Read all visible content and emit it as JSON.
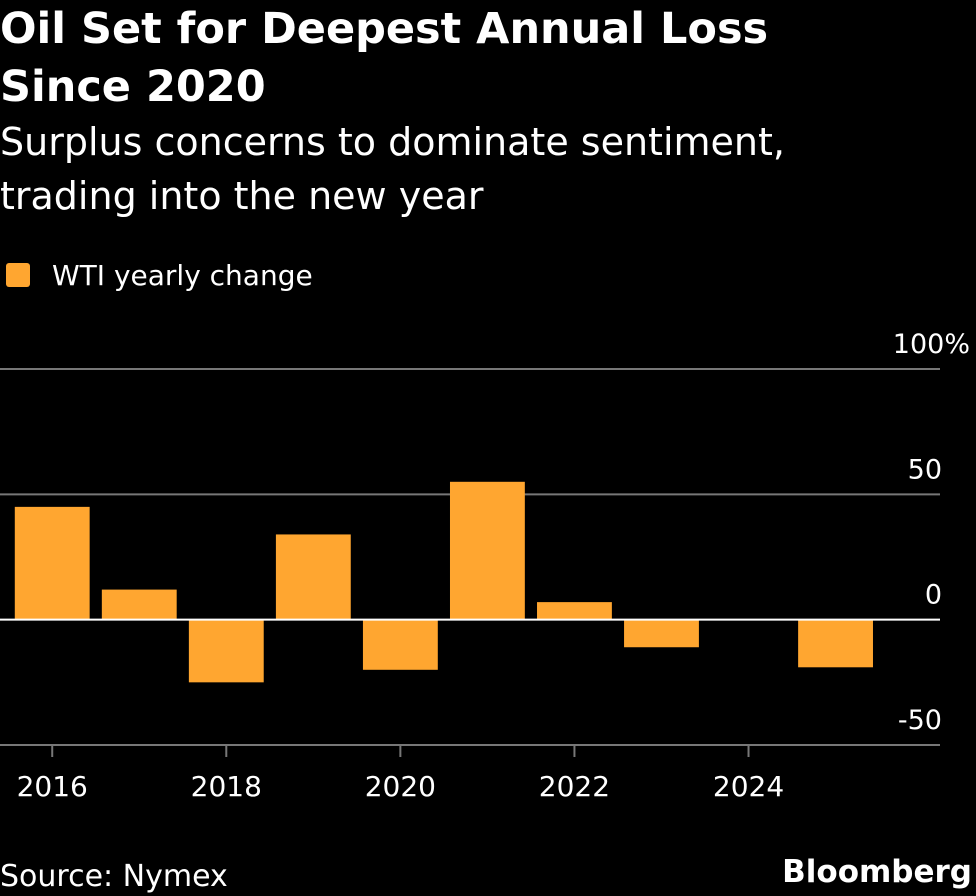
{
  "chart_data": {
    "type": "bar",
    "title": "Oil Set for Deepest Annual Loss Since 2020",
    "subtitle": "Surplus concerns to dominate sentiment, trading into the new year",
    "x": [
      2016,
      2017,
      2018,
      2019,
      2020,
      2021,
      2022,
      2023,
      2024,
      2025
    ],
    "series": [
      {
        "name": "WTI yearly change",
        "color": "#ffa630",
        "values": [
          45,
          12,
          -25,
          34,
          -20,
          55,
          7,
          -11,
          0,
          -19
        ]
      }
    ],
    "xlim": [
      2015.4,
      2026.2
    ],
    "xticks": [
      2016,
      2018,
      2020,
      2022,
      2024
    ],
    "ylim": [
      -50,
      100
    ],
    "yticks": [
      {
        "value": 100,
        "label": "100%"
      },
      50,
      0,
      -50
    ],
    "grid": true,
    "source": "Source: Nymex",
    "brand": "Bloomberg"
  }
}
